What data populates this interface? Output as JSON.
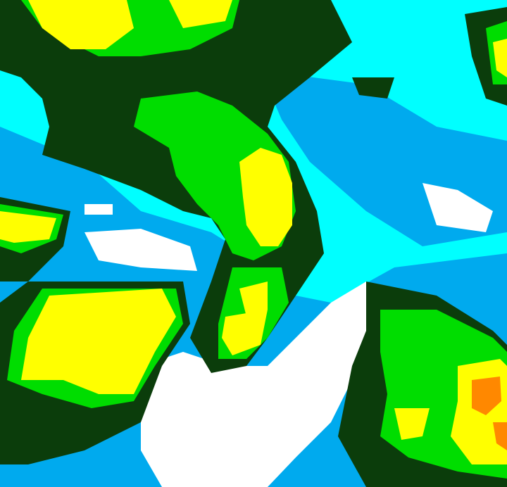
{
  "image": {
    "kind": "false-color satellite cloud imagery",
    "palette": {
      "background": "#00ffff",
      "light_blue": "#00aaee",
      "white": "#ffffff",
      "dark_green": "#0b3d0b",
      "green": "#00dd00",
      "bright_green": "#33ff00",
      "yellow": "#ffff00",
      "orange": "#ff8800"
    }
  }
}
